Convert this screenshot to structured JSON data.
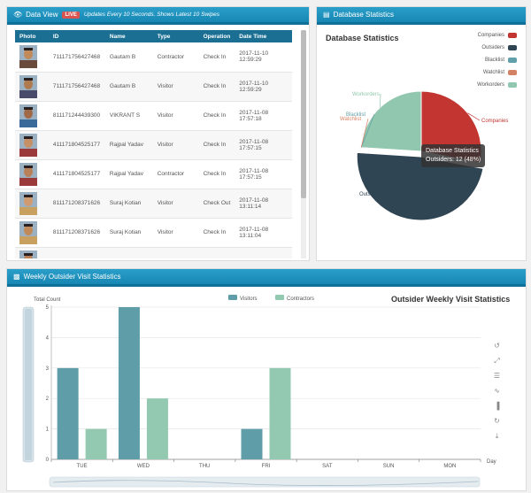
{
  "data_view": {
    "title": "Data View",
    "live_badge": "LIVE",
    "update_note": "Updates Every 10 Seconds. Shows Latest 10 Swipes",
    "columns": [
      "Photo",
      "ID",
      "Name",
      "Type",
      "Operation",
      "Date Time"
    ],
    "rows": [
      {
        "id": "711171756427468",
        "name": "Gautam B",
        "type": "Contractor",
        "op": "Check In",
        "date": "2017-11-10",
        "time": "12:59:29"
      },
      {
        "id": "711171756427468",
        "name": "Gautam B",
        "type": "Visitor",
        "op": "Check In",
        "date": "2017-11-10",
        "time": "12:59:29"
      },
      {
        "id": "811171244439300",
        "name": "VIKRANT S",
        "type": "Visitor",
        "op": "Check In",
        "date": "2017-11-08",
        "time": "17:57:18"
      },
      {
        "id": "411171804525177",
        "name": "Rajpal Yadav",
        "type": "Visitor",
        "op": "Check In",
        "date": "2017-11-08",
        "time": "17:57:15"
      },
      {
        "id": "411171804525177",
        "name": "Rajpal Yadav",
        "type": "Contractor",
        "op": "Check In",
        "date": "2017-11-08",
        "time": "17:57:15"
      },
      {
        "id": "811171208371626",
        "name": "Suraj Kotian",
        "type": "Visitor",
        "op": "Check Out",
        "date": "2017-11-08",
        "time": "13:11:14"
      },
      {
        "id": "811171208371626",
        "name": "Suraj Kotian",
        "type": "Visitor",
        "op": "Check In",
        "date": "2017-11-08",
        "time": "13:11:04"
      },
      {
        "id": "811171208371626",
        "name": "Suraj Kotian",
        "type": "Visitor",
        "op": "Check In",
        "date": "2017-11-08",
        "time": ""
      }
    ]
  },
  "database_statistics": {
    "panel_title": "Database Statistics",
    "chart_data": {
      "type": "pie",
      "title": "Database Statistics",
      "legend_position": "top-right",
      "categories": [
        "Companies",
        "Outsiders",
        "Blacklist",
        "Watchlist",
        "Workorders"
      ],
      "values": [
        7,
        12,
        0,
        0,
        6
      ],
      "colors": [
        "#c23531",
        "#2f4554",
        "#61a0a8",
        "#d48265",
        "#91c7ae"
      ],
      "tooltip_title": "Database Statistics",
      "tooltip_value": "Outsiders: 12 (48%)"
    }
  },
  "weekly_visits": {
    "panel_title": "Weekly Outsider Visit Statistics",
    "chart_data": {
      "type": "bar",
      "title": "Outsider Weekly Visit Statistics",
      "ylabel": "Total Count",
      "xlabel": "Day",
      "ylim": [
        0,
        5
      ],
      "yticks": [
        0,
        1,
        2,
        3,
        4,
        5
      ],
      "legend_position": "top",
      "categories": [
        "TUE",
        "WED",
        "THU",
        "FRI",
        "SAT",
        "SUN",
        "MON"
      ],
      "series": [
        {
          "name": "Visitors",
          "values": [
            3,
            5,
            0,
            1,
            0,
            0,
            0
          ],
          "color": "#5f9ea8"
        },
        {
          "name": "Contractors",
          "values": [
            1,
            2,
            0,
            3,
            0,
            0,
            0
          ],
          "color": "#93c9b1"
        }
      ]
    }
  },
  "icons": {
    "eye": "eye-icon",
    "db": "database-icon",
    "chart": "bar-chart-icon",
    "toolbox": [
      "restore-icon",
      "zoom-icon",
      "data-view-icon",
      "line-switch-icon",
      "bar-switch-icon",
      "refresh-icon",
      "download-icon"
    ]
  }
}
